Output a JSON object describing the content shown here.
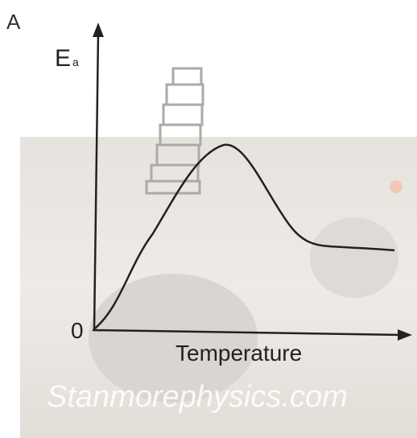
{
  "label": "A",
  "y_axis": {
    "label": "E",
    "subscript": "a"
  },
  "origin": "0",
  "x_axis": {
    "label": "Temperature"
  },
  "watermark": "Stanmorephysics.com"
}
